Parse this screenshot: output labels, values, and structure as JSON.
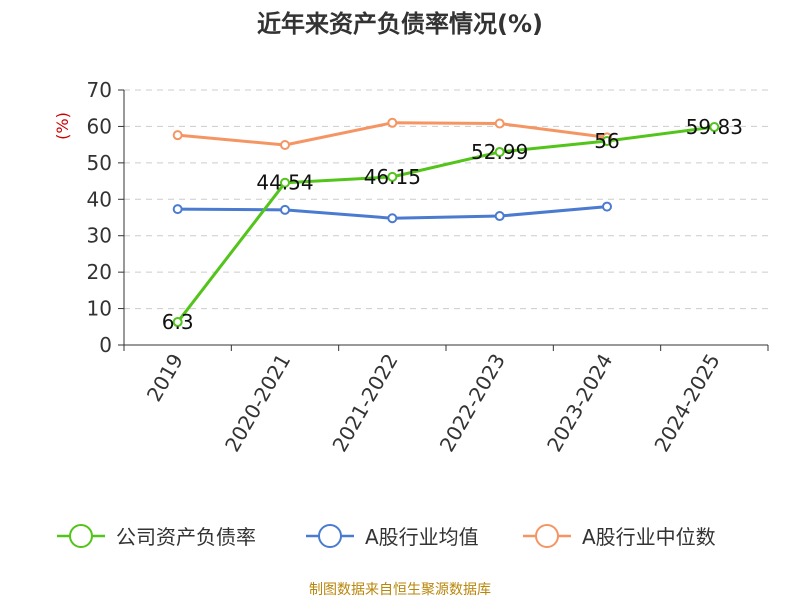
{
  "chart_data": {
    "type": "line",
    "title": "近年来资产负债率情况(%)",
    "ylabel": "(%)",
    "xlabel": "",
    "categories": [
      "2019",
      "2020-2021",
      "2021-2022",
      "2022-2023",
      "2023-2024",
      "2024-2025"
    ],
    "ylim": [
      0,
      70
    ],
    "yticks": [
      0,
      10,
      20,
      30,
      40,
      50,
      60,
      70
    ],
    "grid": true,
    "legend_position": "bottom",
    "series": [
      {
        "name": "公司资产负债率",
        "color": "#52c41a",
        "values": [
          6.3,
          44.54,
          46.15,
          52.99,
          56,
          59.83
        ],
        "labels": [
          "6.3",
          "44.54",
          "46.15",
          "52.99",
          "56",
          "59.83"
        ]
      },
      {
        "name": "A股行业均值",
        "color": "#4a7bd0",
        "values": [
          37.3,
          37.1,
          34.8,
          35.4,
          38.0,
          null
        ]
      },
      {
        "name": "A股行业中位数",
        "color": "#f59563",
        "values": [
          57.6,
          54.9,
          61.0,
          60.8,
          57.0,
          null
        ]
      }
    ]
  },
  "footer": {
    "source": "制图数据来自恒生聚源数据库"
  }
}
